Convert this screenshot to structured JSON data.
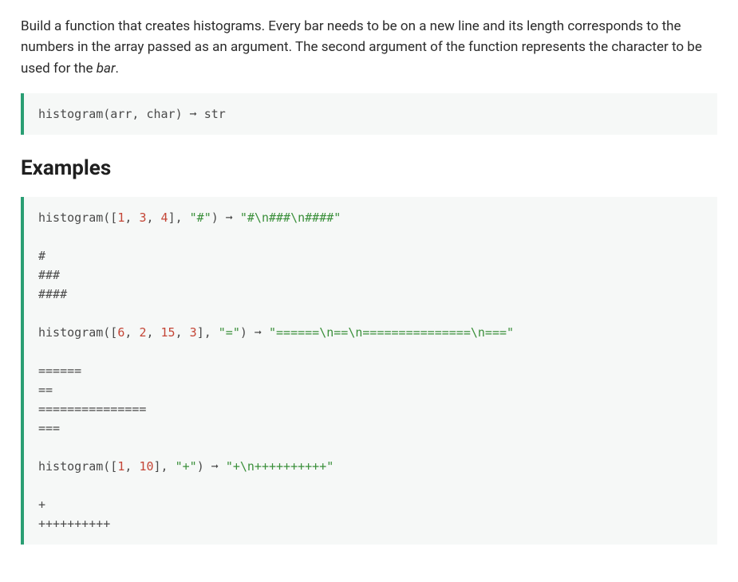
{
  "description_parts": {
    "text_before_em": "Build a function that creates histograms. Every bar needs to be on a new line and its length corresponds to the numbers in the array passed as an argument. The second argument of the function represents the character to be used for the ",
    "em": "bar",
    "text_after_em": "."
  },
  "signature": {
    "fn": "histogram",
    "open": "(arr, char)",
    "arrow": " ➞ ",
    "ret": "str"
  },
  "examples_heading": "Examples",
  "ex1": {
    "call_fn": "histogram",
    "call_open": "([",
    "n1": "1",
    "c1": ", ",
    "n2": "3",
    "c2": ", ",
    "n3": "4",
    "call_close": "], ",
    "arg2": "\"#\"",
    "paren_close": ")",
    "arrow": " ➞ ",
    "result": "\"#\\n###\\n####\"",
    "vis_l1": "#",
    "vis_l2": "###",
    "vis_l3": "####"
  },
  "ex2": {
    "call_fn": "histogram",
    "call_open": "([",
    "n1": "6",
    "c1": ", ",
    "n2": "2",
    "c2": ", ",
    "n3": "15",
    "c3": ", ",
    "n4": "3",
    "call_close": "], ",
    "arg2": "\"=\"",
    "paren_close": ")",
    "arrow": " ➞ ",
    "result": "\"======\\n==\\n===============\\n===\"",
    "vis_l1": "======",
    "vis_l2": "==",
    "vis_l3": "===============",
    "vis_l4": "==="
  },
  "ex3": {
    "call_fn": "histogram",
    "call_open": "([",
    "n1": "1",
    "c1": ", ",
    "n2": "10",
    "call_close": "], ",
    "arg2": "\"+\"",
    "paren_close": ")",
    "arrow": " ➞ ",
    "result": "\"+\\n++++++++++\"",
    "vis_l1": "+",
    "vis_l2": "++++++++++"
  },
  "colors": {
    "code_bg": "#f6f8f7",
    "accent_border": "#2a9e73",
    "number": "#c44536",
    "string": "#3a8f3a",
    "text": "#2b2b2b"
  }
}
